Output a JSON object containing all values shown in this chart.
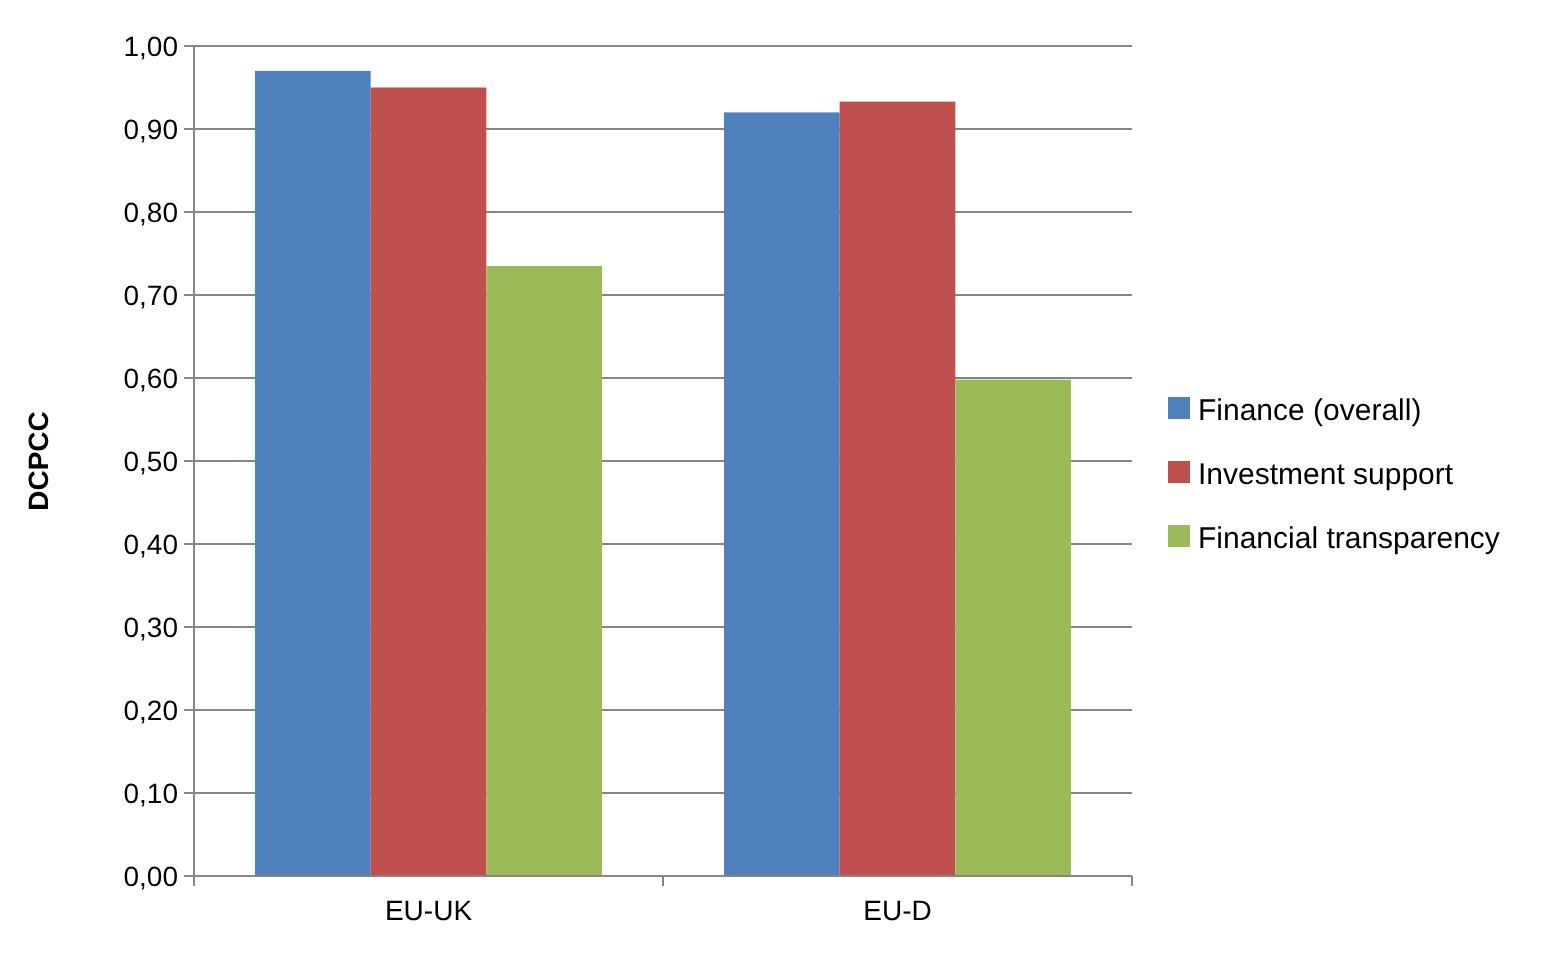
{
  "chart_data": {
    "type": "bar",
    "ylabel": "DCPCC",
    "categories": [
      "EU-UK",
      "EU-D"
    ],
    "series": [
      {
        "name": "Finance (overall)",
        "color": "#4f81bd",
        "values": [
          0.97,
          0.92
        ]
      },
      {
        "name": "Investment support",
        "color": "#c0504d",
        "values": [
          0.95,
          0.933
        ]
      },
      {
        "name": "Financial transparency",
        "color": "#9bbb59",
        "values": [
          0.735,
          0.598
        ]
      }
    ],
    "ylim": [
      0,
      1
    ],
    "yticks": [
      {
        "value": 0,
        "label": "0,00"
      },
      {
        "value": 0.1,
        "label": "0,10"
      },
      {
        "value": 0.2,
        "label": "0,20"
      },
      {
        "value": 0.3,
        "label": "0,30"
      },
      {
        "value": 0.4,
        "label": "0,40"
      },
      {
        "value": 0.5,
        "label": "0,50"
      },
      {
        "value": 0.6,
        "label": "0,60"
      },
      {
        "value": 0.7,
        "label": "0,70"
      },
      {
        "value": 0.8,
        "label": "0,80"
      },
      {
        "value": 0.9,
        "label": "0,90"
      },
      {
        "value": 1,
        "label": "1,00"
      }
    ],
    "grid": "y",
    "legend": "right"
  }
}
